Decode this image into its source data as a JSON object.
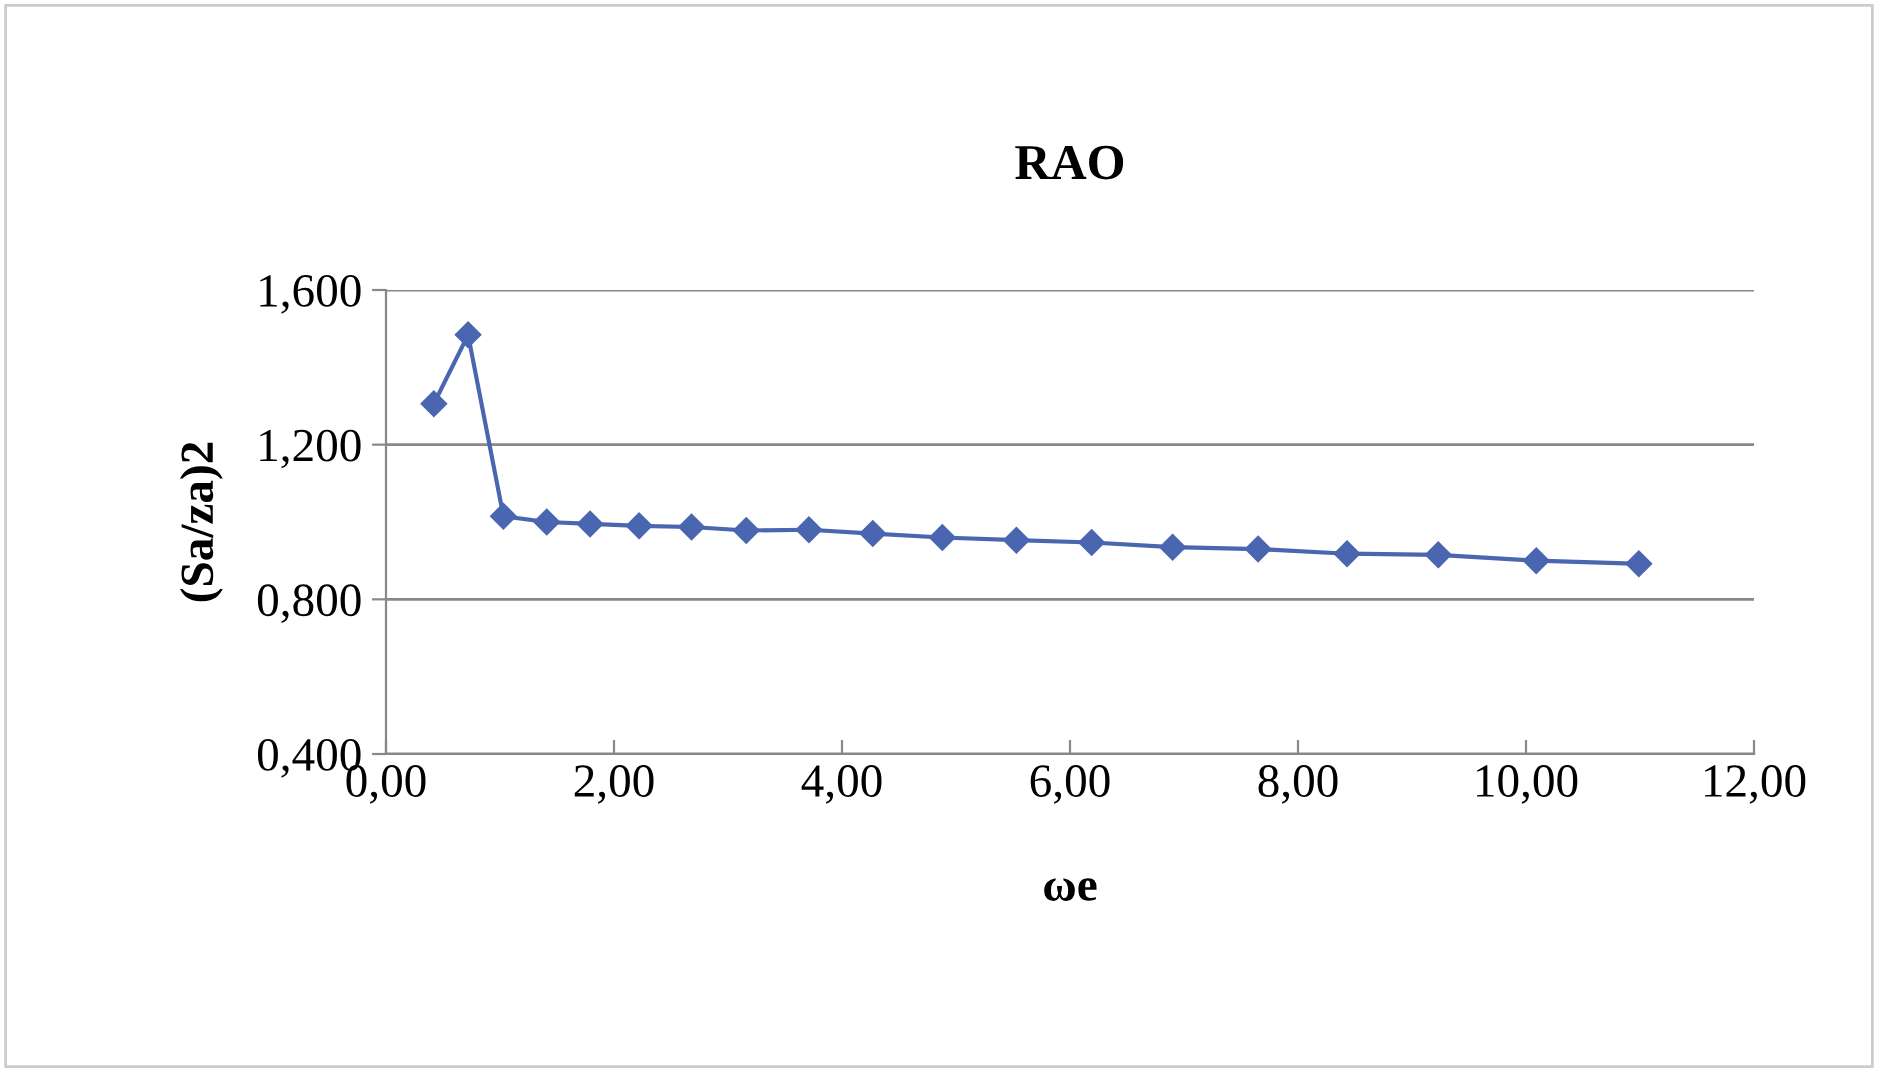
{
  "chart_data": {
    "type": "line",
    "title": "RAO",
    "xlabel": "ωe",
    "ylabel": "(Sa/za)2",
    "x": [
      0.42,
      0.72,
      1.03,
      1.41,
      1.79,
      2.22,
      2.68,
      3.16,
      3.71,
      4.27,
      4.88,
      5.53,
      6.19,
      6.9,
      7.65,
      8.43,
      9.23,
      10.09,
      10.99
    ],
    "series": [
      {
        "color": "#4a66b0",
        "values": [
          1.306,
          1.484,
          1.015,
          1.0,
          0.995,
          0.99,
          0.987,
          0.978,
          0.98,
          0.97,
          0.96,
          0.953,
          0.947,
          0.935,
          0.93,
          0.918,
          0.915,
          0.9,
          0.892
        ]
      }
    ],
    "xlim": [
      0,
      12
    ],
    "xticks": [
      {
        "value": 0,
        "label": "0,00"
      },
      {
        "value": 2,
        "label": "2,00"
      },
      {
        "value": 4,
        "label": "4,00"
      },
      {
        "value": 6,
        "label": "6,00"
      },
      {
        "value": 8,
        "label": "8,00"
      },
      {
        "value": 10,
        "label": "10,00"
      },
      {
        "value": 12,
        "label": "12,00"
      }
    ],
    "ylim": [
      0.4,
      1.6
    ],
    "yticks": [
      {
        "value": 0.4,
        "label": "0,400"
      },
      {
        "value": 0.8,
        "label": "0,800"
      },
      {
        "value": 1.2,
        "label": "1,200"
      },
      {
        "value": 1.6,
        "label": "1,600"
      }
    ],
    "grid": "y",
    "marker": "diamond",
    "line_style": "solid"
  }
}
